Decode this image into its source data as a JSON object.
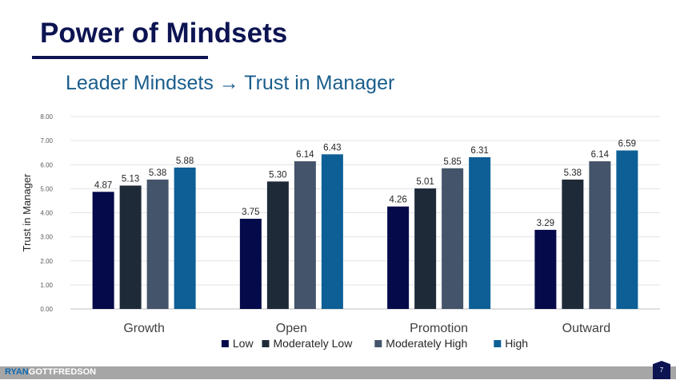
{
  "slide": {
    "title": "Power of Mindsets",
    "subtitle": "Leader Mindsets → Trust in Manager",
    "brand_part1": "RYAN",
    "brand_part2": "GOTTFREDSON",
    "page_number": "7"
  },
  "colors": {
    "title": "#0d1452",
    "subtitle": "#1a5e8c",
    "footer_bar": "#a6a6a6"
  },
  "chart_data": {
    "type": "bar",
    "title": "",
    "xlabel": "",
    "ylabel": "Trust in Manager",
    "ylim": [
      0,
      8
    ],
    "yticks": [
      "0.00",
      "1.00",
      "2.00",
      "3.00",
      "4.00",
      "5.00",
      "6.00",
      "7.00",
      "8.00"
    ],
    "grid": true,
    "legend_position": "bottom",
    "categories": [
      "Growth",
      "Open",
      "Promotion",
      "Outward"
    ],
    "series": [
      {
        "name": "Low",
        "color": "#050a4a",
        "values": [
          4.87,
          3.75,
          4.26,
          3.29
        ],
        "labels": [
          "4.87",
          "3.75",
          "4.26",
          "3.29"
        ]
      },
      {
        "name": "Moderately Low",
        "color": "#1f2a38",
        "values": [
          5.13,
          5.3,
          5.01,
          5.38
        ],
        "labels": [
          "5.13",
          "5.30",
          "5.01",
          "5.38"
        ]
      },
      {
        "name": "Moderately High",
        "color": "#44546a",
        "values": [
          5.38,
          6.14,
          5.85,
          6.14
        ],
        "labels": [
          "5.38",
          "6.14",
          "5.85",
          "6.14"
        ]
      },
      {
        "name": "High",
        "color": "#0d5f96",
        "values": [
          5.88,
          6.43,
          6.31,
          6.59
        ],
        "labels": [
          "5.88",
          "6.43",
          "6.31",
          "6.59"
        ]
      }
    ]
  }
}
